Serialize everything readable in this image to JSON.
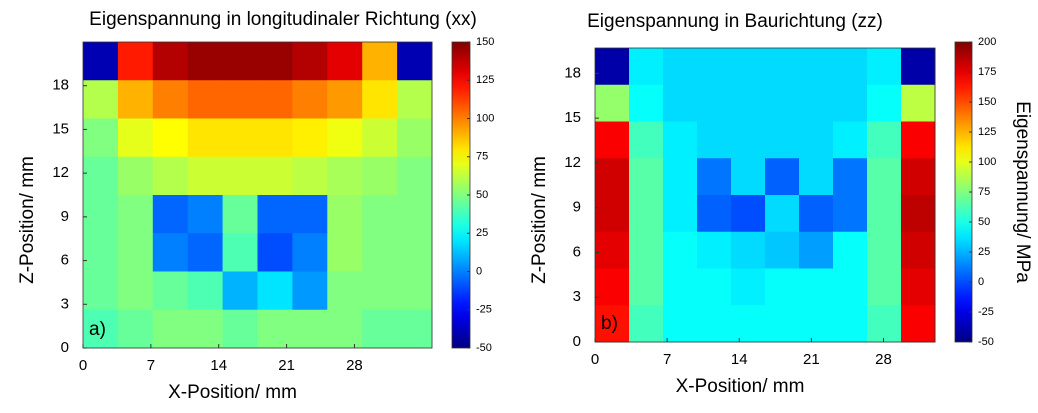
{
  "chart_data": [
    {
      "type": "heatmap",
      "title": "Eigenspannung in longitudinaler Richtung (xx)",
      "xlabel": "X-Position/ mm",
      "ylabel": "Z-Position/ mm",
      "annotation": "a)",
      "xlim": [
        0,
        36
      ],
      "ylim": [
        0,
        21
      ],
      "xticks": [
        0,
        7,
        14,
        21,
        28
      ],
      "yticks": [
        0,
        3,
        6,
        9,
        12,
        15,
        18
      ],
      "zlim": [
        -50,
        150
      ],
      "zticks": [
        -50,
        -25,
        0,
        25,
        50,
        75,
        100,
        125,
        150
      ],
      "z": [
        [
          -40,
          120,
          140,
          145,
          145,
          145,
          140,
          130,
          90,
          -40
        ],
        [
          60,
          90,
          100,
          105,
          105,
          105,
          100,
          95,
          80,
          60
        ],
        [
          50,
          70,
          75,
          80,
          80,
          80,
          78,
          72,
          65,
          55
        ],
        [
          45,
          55,
          60,
          65,
          65,
          65,
          62,
          58,
          55,
          50
        ],
        [
          45,
          50,
          -5,
          0,
          45,
          -5,
          -5,
          55,
          50,
          50
        ],
        [
          45,
          50,
          0,
          -5,
          40,
          -10,
          0,
          55,
          50,
          50
        ],
        [
          45,
          50,
          45,
          40,
          10,
          20,
          5,
          50,
          50,
          50
        ],
        [
          40,
          45,
          50,
          50,
          45,
          50,
          50,
          50,
          45,
          45
        ]
      ]
    },
    {
      "type": "heatmap",
      "title": "Eigenspannung in Baurichtung (zz)",
      "xlabel": "X-Position/ mm",
      "ylabel": "Z-Position/ mm",
      "annotation": "b)",
      "colorbar_label": "Eigenspannung/ MPa",
      "xlim": [
        0,
        33
      ],
      "ylim": [
        0,
        19.7
      ],
      "xticks": [
        0,
        7,
        14,
        21,
        28
      ],
      "yticks": [
        0,
        3,
        6,
        9,
        12,
        15,
        18
      ],
      "zlim": [
        -50,
        200
      ],
      "zticks": [
        -50,
        -25,
        0,
        25,
        50,
        75,
        100,
        125,
        150,
        175,
        200
      ],
      "z": [
        [
          -40,
          40,
          35,
          35,
          35,
          35,
          35,
          35,
          40,
          -40
        ],
        [
          80,
          45,
          35,
          35,
          35,
          35,
          35,
          35,
          45,
          90
        ],
        [
          170,
          60,
          40,
          35,
          35,
          35,
          35,
          40,
          60,
          170
        ],
        [
          180,
          65,
          40,
          10,
          35,
          5,
          35,
          10,
          65,
          180
        ],
        [
          180,
          65,
          40,
          5,
          0,
          35,
          5,
          10,
          65,
          185
        ],
        [
          175,
          65,
          45,
          40,
          35,
          30,
          20,
          45,
          65,
          180
        ],
        [
          170,
          65,
          45,
          45,
          40,
          45,
          45,
          45,
          65,
          175
        ],
        [
          165,
          60,
          45,
          45,
          45,
          45,
          45,
          45,
          60,
          170
        ]
      ]
    }
  ]
}
